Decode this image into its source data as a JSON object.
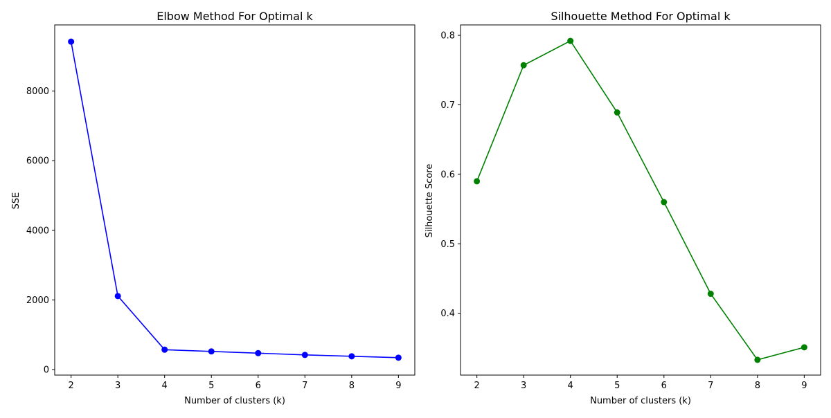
{
  "chart_data": [
    {
      "type": "line",
      "title": "Elbow Method For Optimal k",
      "xlabel": "Number of clusters (k)",
      "ylabel": "SSE",
      "x": [
        2,
        3,
        4,
        5,
        6,
        7,
        8,
        9
      ],
      "xticks": [
        "2",
        "3",
        "4",
        "5",
        "6",
        "7",
        "8",
        "9"
      ],
      "xlim": [
        1.65,
        9.35
      ],
      "ylim": [
        -160,
        9900
      ],
      "yticks": [
        0,
        2000,
        4000,
        6000,
        8000
      ],
      "ytick_labels": [
        "0",
        "2000",
        "4000",
        "6000",
        "8000"
      ],
      "grid": false,
      "series": [
        {
          "values": [
            9420,
            2110,
            570,
            520,
            470,
            420,
            380,
            340
          ],
          "color": "#0000ff",
          "marker": "circle"
        }
      ]
    },
    {
      "type": "line",
      "title": "Silhouette Method For Optimal k",
      "xlabel": "Number of clusters (k)",
      "ylabel": "Silhouette Score",
      "x": [
        2,
        3,
        4,
        5,
        6,
        7,
        8,
        9
      ],
      "xticks": [
        "2",
        "3",
        "4",
        "5",
        "6",
        "7",
        "8",
        "9"
      ],
      "xlim": [
        1.65,
        9.35
      ],
      "ylim": [
        0.311,
        0.815
      ],
      "yticks": [
        0.4,
        0.5,
        0.6,
        0.7,
        0.8
      ],
      "ytick_labels": [
        "0.4",
        "0.5",
        "0.6",
        "0.7",
        "0.8"
      ],
      "grid": false,
      "series": [
        {
          "values": [
            0.59,
            0.757,
            0.792,
            0.689,
            0.56,
            0.428,
            0.333,
            0.351
          ],
          "color": "#008000",
          "marker": "circle"
        }
      ]
    }
  ]
}
